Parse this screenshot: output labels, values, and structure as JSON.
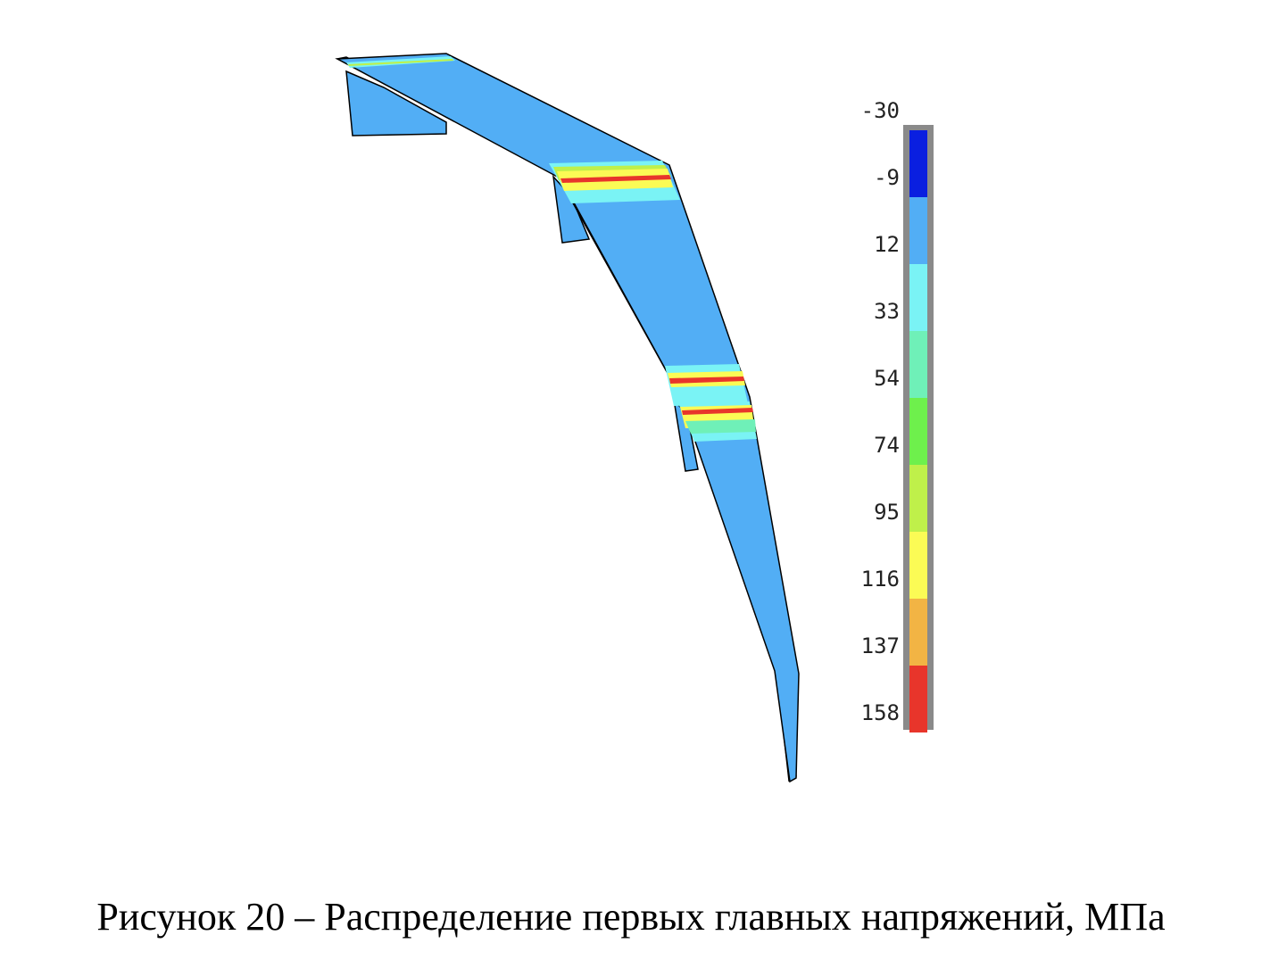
{
  "figure": {
    "caption": "Рисунок 20 – Распределение первых главных напряжений, МПа"
  },
  "legend": {
    "ticks": [
      "-30",
      "-9",
      "12",
      "33",
      "54",
      "74",
      "95",
      "116",
      "137",
      "158"
    ],
    "bands": [
      {
        "color": "#0a1fe0"
      },
      {
        "color": "#52aef5"
      },
      {
        "color": "#7af3f5"
      },
      {
        "color": "#6ff0b8"
      },
      {
        "color": "#6ef04c"
      },
      {
        "color": "#bff04a"
      },
      {
        "color": "#fbfb55"
      },
      {
        "color": "#f2b444"
      },
      {
        "color": "#e8352b"
      }
    ]
  },
  "model": {
    "base_color": "#52aef5",
    "hotspot_colors": [
      "#7af3f5",
      "#bff04a",
      "#fbfb55",
      "#e8352b"
    ]
  }
}
